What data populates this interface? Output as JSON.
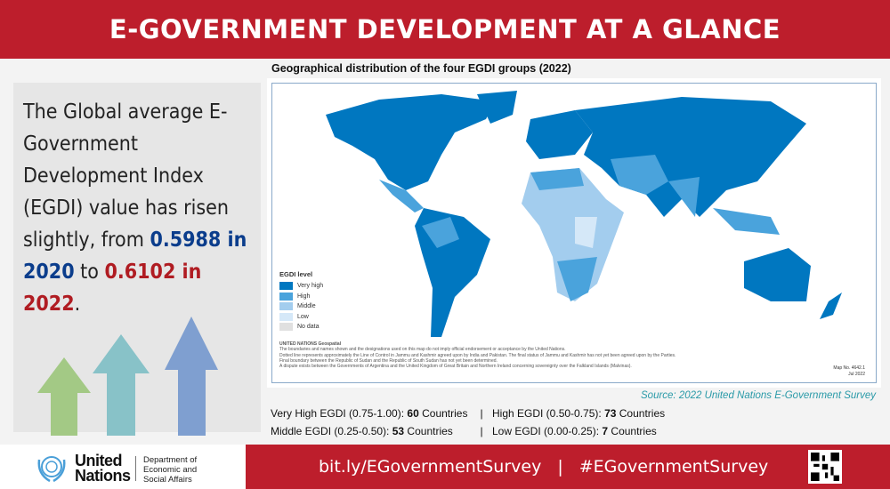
{
  "header": {
    "title": "E-GOVERNMENT DEVELOPMENT AT A GLANCE"
  },
  "lead": {
    "text_before": "The Global average E-Government Development Index (EGDI) value has risen slightly, from ",
    "value_2020": "0.5988 in 2020",
    "mid": " to ",
    "value_2022": "0.6102 in 2022",
    "end": "."
  },
  "map": {
    "title": "Geographical distribution of the four EGDI groups (2022)",
    "legend_title": "EGDI level",
    "legend": [
      {
        "label": "Very high",
        "color": "#0077c0"
      },
      {
        "label": "High",
        "color": "#4aa3dc"
      },
      {
        "label": "Middle",
        "color": "#a3cdee"
      },
      {
        "label": "Low",
        "color": "#d5e8f8"
      },
      {
        "label": "No data",
        "color": "#e0e0e0"
      }
    ],
    "notes_heading": "UNITED NATIONS Geospatial",
    "notes": [
      "The boundaries and names shown and the designations used on this map do not imply official endorsement or acceptance by the United Nations.",
      "Dotted line represents approximately the Line of Control in Jammu and Kashmir agreed upon by India and Pakistan. The final status of Jammu and Kashmir has not yet been agreed upon by the Parties.",
      "Final boundary between the Republic of Sudan and the Republic of South Sudan has not yet been determined.",
      "A dispute exists between the Governments of Argentina and the United Kingdom of Great Britain and Northern Ireland concerning sovereignty over the Falkland Islands (Malvinas)."
    ],
    "map_no": "Map No. 4642.1",
    "map_date": "Jul 2022"
  },
  "source": "Source: 2022 United Nations E-Government Survey",
  "stats": [
    {
      "label": "Very High EGDI (0.75-1.00): ",
      "count": "60",
      "unit": " Countries"
    },
    {
      "label": "High EGDI (0.50-0.75): ",
      "count": "73",
      "unit": " Countries"
    },
    {
      "label": "Middle EGDI (0.25-0.50): ",
      "count": "53",
      "unit": " Countries"
    },
    {
      "label": "Low EGDI (0.00-0.25): ",
      "count": "7",
      "unit": " Countries"
    }
  ],
  "separator": "|",
  "footer": {
    "un_line1": "United",
    "un_line2": "Nations",
    "dept": [
      "Department of",
      "Economic and",
      "Social Affairs"
    ],
    "link": "bit.ly/EGovernmentSurvey",
    "divider": "|",
    "hashtag": "#EGovernmentSurvey"
  }
}
